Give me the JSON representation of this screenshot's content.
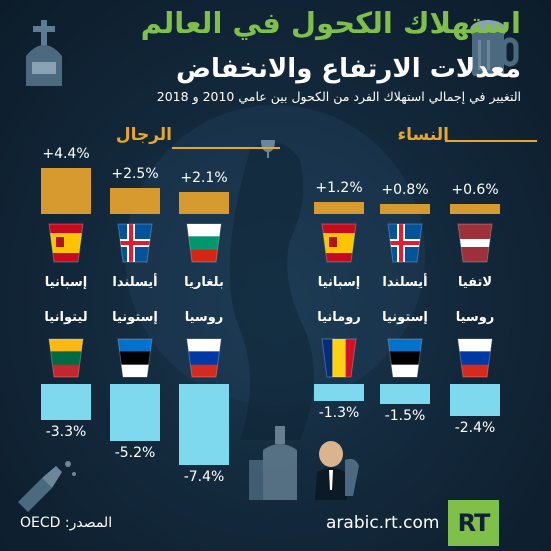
{
  "header": {
    "title1": "استهلاك الكحول في العالم",
    "title2": "معدلات الارتفاع والانخفاض",
    "subtitle": "التغيير في إجمالي استهلاك الفرد من الكحول بين عامي 2010 و 2018"
  },
  "sections": {
    "men": "الرجال",
    "women": "النساء"
  },
  "footer": {
    "source": "المصدر: OECD",
    "site": "arabic.rt.com",
    "logo": "RT"
  },
  "colors": {
    "increase": "#d69a2e",
    "decrease": "#7fd9ee",
    "accent_green": "#7ec04a",
    "accent_orange": "#e6a72a"
  },
  "chart_data": [
    {
      "type": "bar",
      "group": "الرجال",
      "direction": "increase",
      "categories": [
        "إسبانيا",
        "أيسلندا",
        "بلغاريا"
      ],
      "value_labels": [
        "+4.4%",
        "+2.5%",
        "+2.1%"
      ],
      "values": [
        4.4,
        2.5,
        2.1
      ],
      "flags": [
        "spain-flag",
        "iceland-flag",
        "bulgaria-flag"
      ]
    },
    {
      "type": "bar",
      "group": "الرجال",
      "direction": "decrease",
      "categories": [
        "ليتوانيا",
        "إستونيا",
        "روسيا"
      ],
      "value_labels": [
        "-3.3%",
        "-5.2%",
        "-7.4%"
      ],
      "values": [
        -3.3,
        -5.2,
        -7.4
      ],
      "flags": [
        "lithuania-flag",
        "estonia-flag",
        "russia-flag"
      ]
    },
    {
      "type": "bar",
      "group": "النساء",
      "direction": "increase",
      "categories": [
        "إسبانيا",
        "أيسلندا",
        "لاتفيا"
      ],
      "value_labels": [
        "+1.2%",
        "+0.8%",
        "+0.6%"
      ],
      "values": [
        1.2,
        0.8,
        0.6
      ],
      "flags": [
        "spain-flag",
        "iceland-flag",
        "latvia-flag"
      ]
    },
    {
      "type": "bar",
      "group": "النساء",
      "direction": "decrease",
      "categories": [
        "رومانيا",
        "إستونيا",
        "روسيا"
      ],
      "value_labels": [
        "-1.3%",
        "-1.5%",
        "-2.4%"
      ],
      "values": [
        -1.3,
        -1.5,
        -2.4
      ],
      "flags": [
        "romania-flag",
        "estonia-flag",
        "russia-flag"
      ]
    }
  ]
}
